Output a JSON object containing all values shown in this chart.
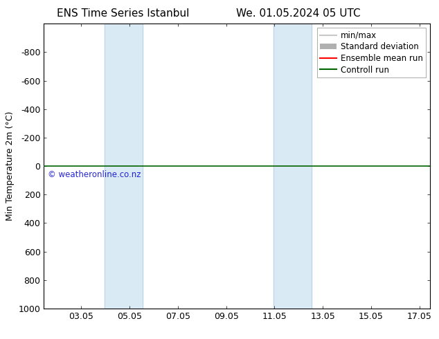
{
  "title_left": "ENS Time Series Istanbul",
  "title_right": "We. 01.05.2024 05 UTC",
  "ylabel": "Min Temperature 2m (°C)",
  "watermark": "© weatheronline.co.nz",
  "xlim_start": 1.5,
  "xlim_end": 17.5,
  "ylim_bottom": 1000,
  "ylim_top": -1000,
  "yticks": [
    -800,
    -600,
    -400,
    -200,
    0,
    200,
    400,
    600,
    800,
    1000
  ],
  "xticks": [
    3.05,
    5.05,
    7.05,
    9.05,
    11.05,
    13.05,
    15.05,
    17.05
  ],
  "xtick_labels": [
    "03.05",
    "05.05",
    "07.05",
    "09.05",
    "11.05",
    "13.05",
    "15.05",
    "17.05"
  ],
  "shaded_bands": [
    {
      "xmin": 4.0,
      "xmax": 5.6
    },
    {
      "xmin": 11.0,
      "xmax": 12.6
    }
  ],
  "band_color": "#daeaf5",
  "band_edge_color": "#b8d4e8",
  "control_run_y": 0,
  "control_run_color": "#006400",
  "ensemble_mean_color": "#ff0000",
  "min_max_color": "#c8c8c8",
  "std_dev_color": "#b0b0b0",
  "bg_color": "#ffffff",
  "legend_entries": [
    "min/max",
    "Standard deviation",
    "Ensemble mean run",
    "Controll run"
  ],
  "legend_colors": [
    "#c8c8c8",
    "#b0b0b0",
    "#ff0000",
    "#006400"
  ],
  "font_size_title": 11,
  "font_size_axis": 9,
  "font_size_legend": 8.5,
  "font_size_watermark": 8.5
}
